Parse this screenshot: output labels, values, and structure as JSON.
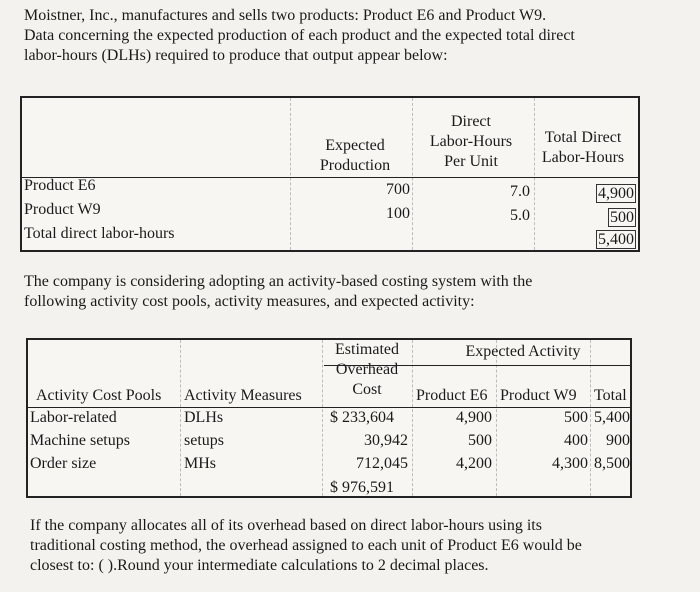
{
  "intro": {
    "line1": "Moistner, Inc., manufactures and sells two products: Product E6 and Product W9.",
    "line2": "Data concerning the expected production of each product and the expected total direct",
    "line3": "labor-hours (DLHs) required to produce that output appear below:"
  },
  "table1": {
    "headers": {
      "expected": [
        "Expected",
        "Production"
      ],
      "dlh_per_unit": [
        "Direct",
        "Labor-Hours",
        "Per Unit"
      ],
      "total_dlh": [
        "Total Direct",
        "Labor-Hours"
      ]
    },
    "rows": [
      {
        "label": "Product E6",
        "production": "700",
        "per_unit": "7.0",
        "total": "4,900"
      },
      {
        "label": "Product W9",
        "production": "100",
        "per_unit": "5.0",
        "total": "500"
      },
      {
        "label": "Total direct labor-hours",
        "total": "5,400"
      }
    ]
  },
  "middle": {
    "line1": "The company is considering adopting an activity-based costing system with the",
    "line2": "following activity cost pools, activity measures, and expected activity:"
  },
  "table2": {
    "headers": {
      "estimated": [
        "Estimated",
        "Overhead",
        "Cost"
      ],
      "expected_activity": "Expected Activity",
      "pools": "Activity Cost Pools",
      "measures": "Activity Measures",
      "e6": "Product E6",
      "w9": "Product W9",
      "total": "Total"
    },
    "rows": [
      {
        "pool": "Labor-related",
        "measure": "DLHs",
        "cost": "$ 233,604",
        "e6": "4,900",
        "w9": "500",
        "total": "5,400"
      },
      {
        "pool": "Machine setups",
        "measure": "setups",
        "cost": "30,942",
        "e6": "500",
        "w9": "400",
        "total": "900"
      },
      {
        "pool": "Order size",
        "measure": "MHs",
        "cost": "712,045",
        "e6": "4,200",
        "w9": "4,300",
        "total": "8,500"
      }
    ],
    "total_cost": "$ 976,591"
  },
  "outro": {
    "line1": "If the company allocates all of its overhead based on direct labor-hours using its",
    "line2": "traditional costing method, the overhead assigned to each unit of Product E6 would be",
    "line3": "closest to: (          ).Round your intermediate calculations to 2 decimal places."
  }
}
